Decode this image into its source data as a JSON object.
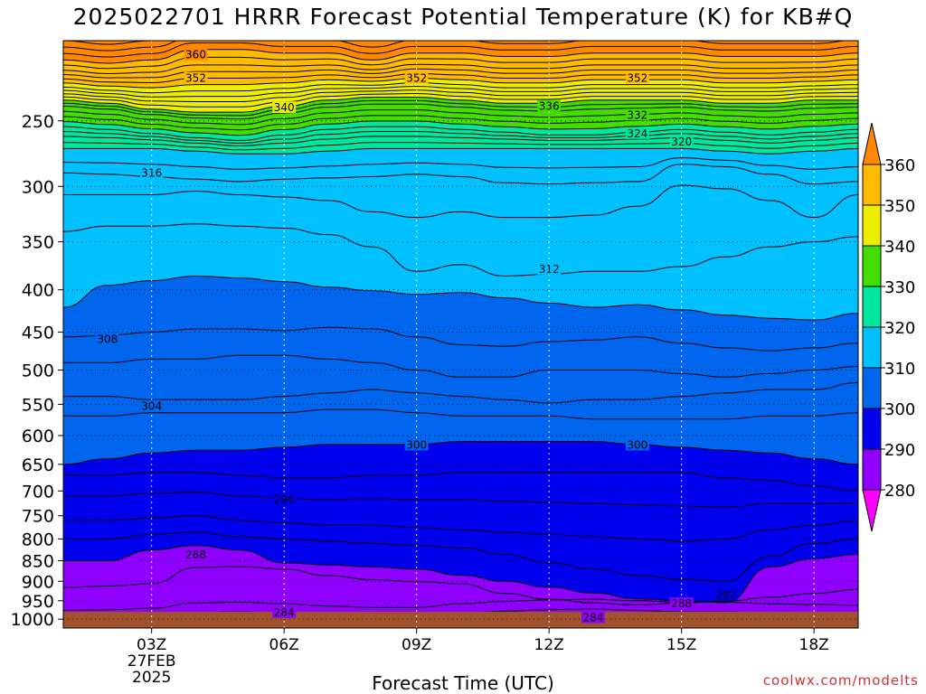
{
  "title": "2025022701 HRRR Forecast Potential Temperature (K) for KB#Q",
  "xlabel": "Forecast Time (UTC)",
  "watermark": "coolwx.com/modelts",
  "chart_data": {
    "type": "contour",
    "x_ticks": [
      "03Z",
      "06Z",
      "09Z",
      "12Z",
      "15Z",
      "18Z"
    ],
    "x_tick_hours": [
      3,
      6,
      9,
      12,
      15,
      18
    ],
    "x_date_label": [
      "27FEB",
      "2025"
    ],
    "xlim": [
      1,
      19
    ],
    "y_scale": "log",
    "y_direction": "inverted",
    "y_ticks": [
      250,
      300,
      350,
      400,
      450,
      500,
      550,
      600,
      650,
      700,
      750,
      800,
      850,
      900,
      950,
      1000
    ],
    "ylim": [
      1025,
      200
    ],
    "grid": true,
    "colorbar": {
      "position": "right",
      "levels": [
        280,
        290,
        300,
        310,
        320,
        330,
        340,
        350,
        360
      ],
      "colors": [
        "#8f00ff",
        "#0000ee",
        "#0066ee",
        "#00c0ff",
        "#00e8a0",
        "#44dd00",
        "#eeee00",
        "#ffbb00",
        "#ff8800"
      ],
      "under_color": "#ff00ff",
      "over_color": "#ff8800"
    },
    "ground_color": "#a0522d",
    "contour_labels": [
      {
        "x": 4.0,
        "p": 208,
        "text": "360"
      },
      {
        "x": 4.0,
        "p": 222,
        "text": "352"
      },
      {
        "x": 9.0,
        "p": 222,
        "text": "352"
      },
      {
        "x": 14.0,
        "p": 222,
        "text": "352"
      },
      {
        "x": 6.0,
        "p": 241,
        "text": "340"
      },
      {
        "x": 12.0,
        "p": 240,
        "text": "336"
      },
      {
        "x": 14.0,
        "p": 246,
        "text": "332"
      },
      {
        "x": 14.0,
        "p": 259,
        "text": "324"
      },
      {
        "x": 15.0,
        "p": 265,
        "text": "320"
      },
      {
        "x": 3.0,
        "p": 289,
        "text": "316"
      },
      {
        "x": 12.0,
        "p": 378,
        "text": "312"
      },
      {
        "x": 2.0,
        "p": 459,
        "text": "308"
      },
      {
        "x": 3.0,
        "p": 553,
        "text": "304"
      },
      {
        "x": 9.0,
        "p": 616,
        "text": "300"
      },
      {
        "x": 14.0,
        "p": 616,
        "text": "300"
      },
      {
        "x": 6.0,
        "p": 717,
        "text": "296"
      },
      {
        "x": 4.0,
        "p": 836,
        "text": "288"
      },
      {
        "x": 16.0,
        "p": 935,
        "text": "292"
      },
      {
        "x": 15.0,
        "p": 958,
        "text": "288"
      },
      {
        "x": 6.0,
        "p": 982,
        "text": "284"
      },
      {
        "x": 13.0,
        "p": 996,
        "text": "284"
      }
    ]
  }
}
